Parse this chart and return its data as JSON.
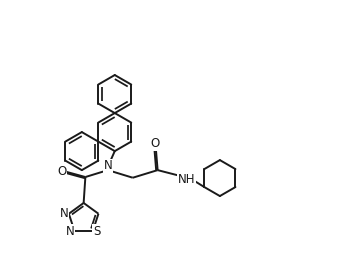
{
  "bg_color": "#ffffff",
  "line_color": "#1a1a1a",
  "line_width": 1.4,
  "font_size": 8.5,
  "fig_width": 3.54,
  "fig_height": 2.78,
  "dpi": 100,
  "xlim": [
    0,
    10
  ],
  "ylim": [
    0,
    8
  ]
}
